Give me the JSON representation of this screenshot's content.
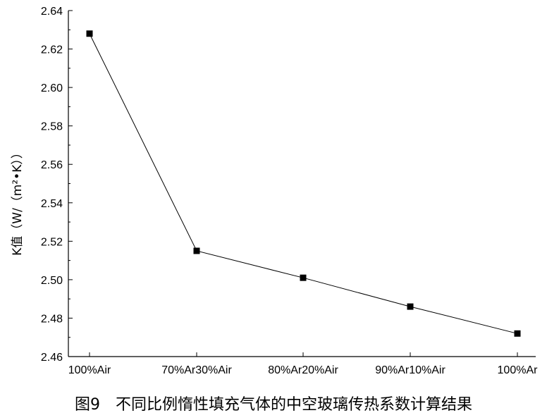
{
  "chart_data": {
    "type": "line",
    "categories": [
      "100%Air",
      "70%Ar30%Air",
      "80%Ar20%Air",
      "90%Ar10%Air",
      "100%Ar"
    ],
    "series": [
      {
        "values": [
          2.628,
          2.515,
          2.501,
          2.486,
          2.472
        ]
      }
    ],
    "ylabel": "K值（W/（m²•K））",
    "ylim": [
      2.46,
      2.64
    ],
    "yticks": [
      "2.46",
      "2.48",
      "2.50",
      "2.52",
      "2.54",
      "2.56",
      "2.58",
      "2.60",
      "2.62",
      "2.64"
    ],
    "grid": false,
    "marker": "square",
    "colors": {
      "line": "#000000",
      "marker": "#000000"
    }
  },
  "figure": {
    "caption": "图9　不同比例惰性填充气体的中空玻璃传热系数计算结果"
  }
}
